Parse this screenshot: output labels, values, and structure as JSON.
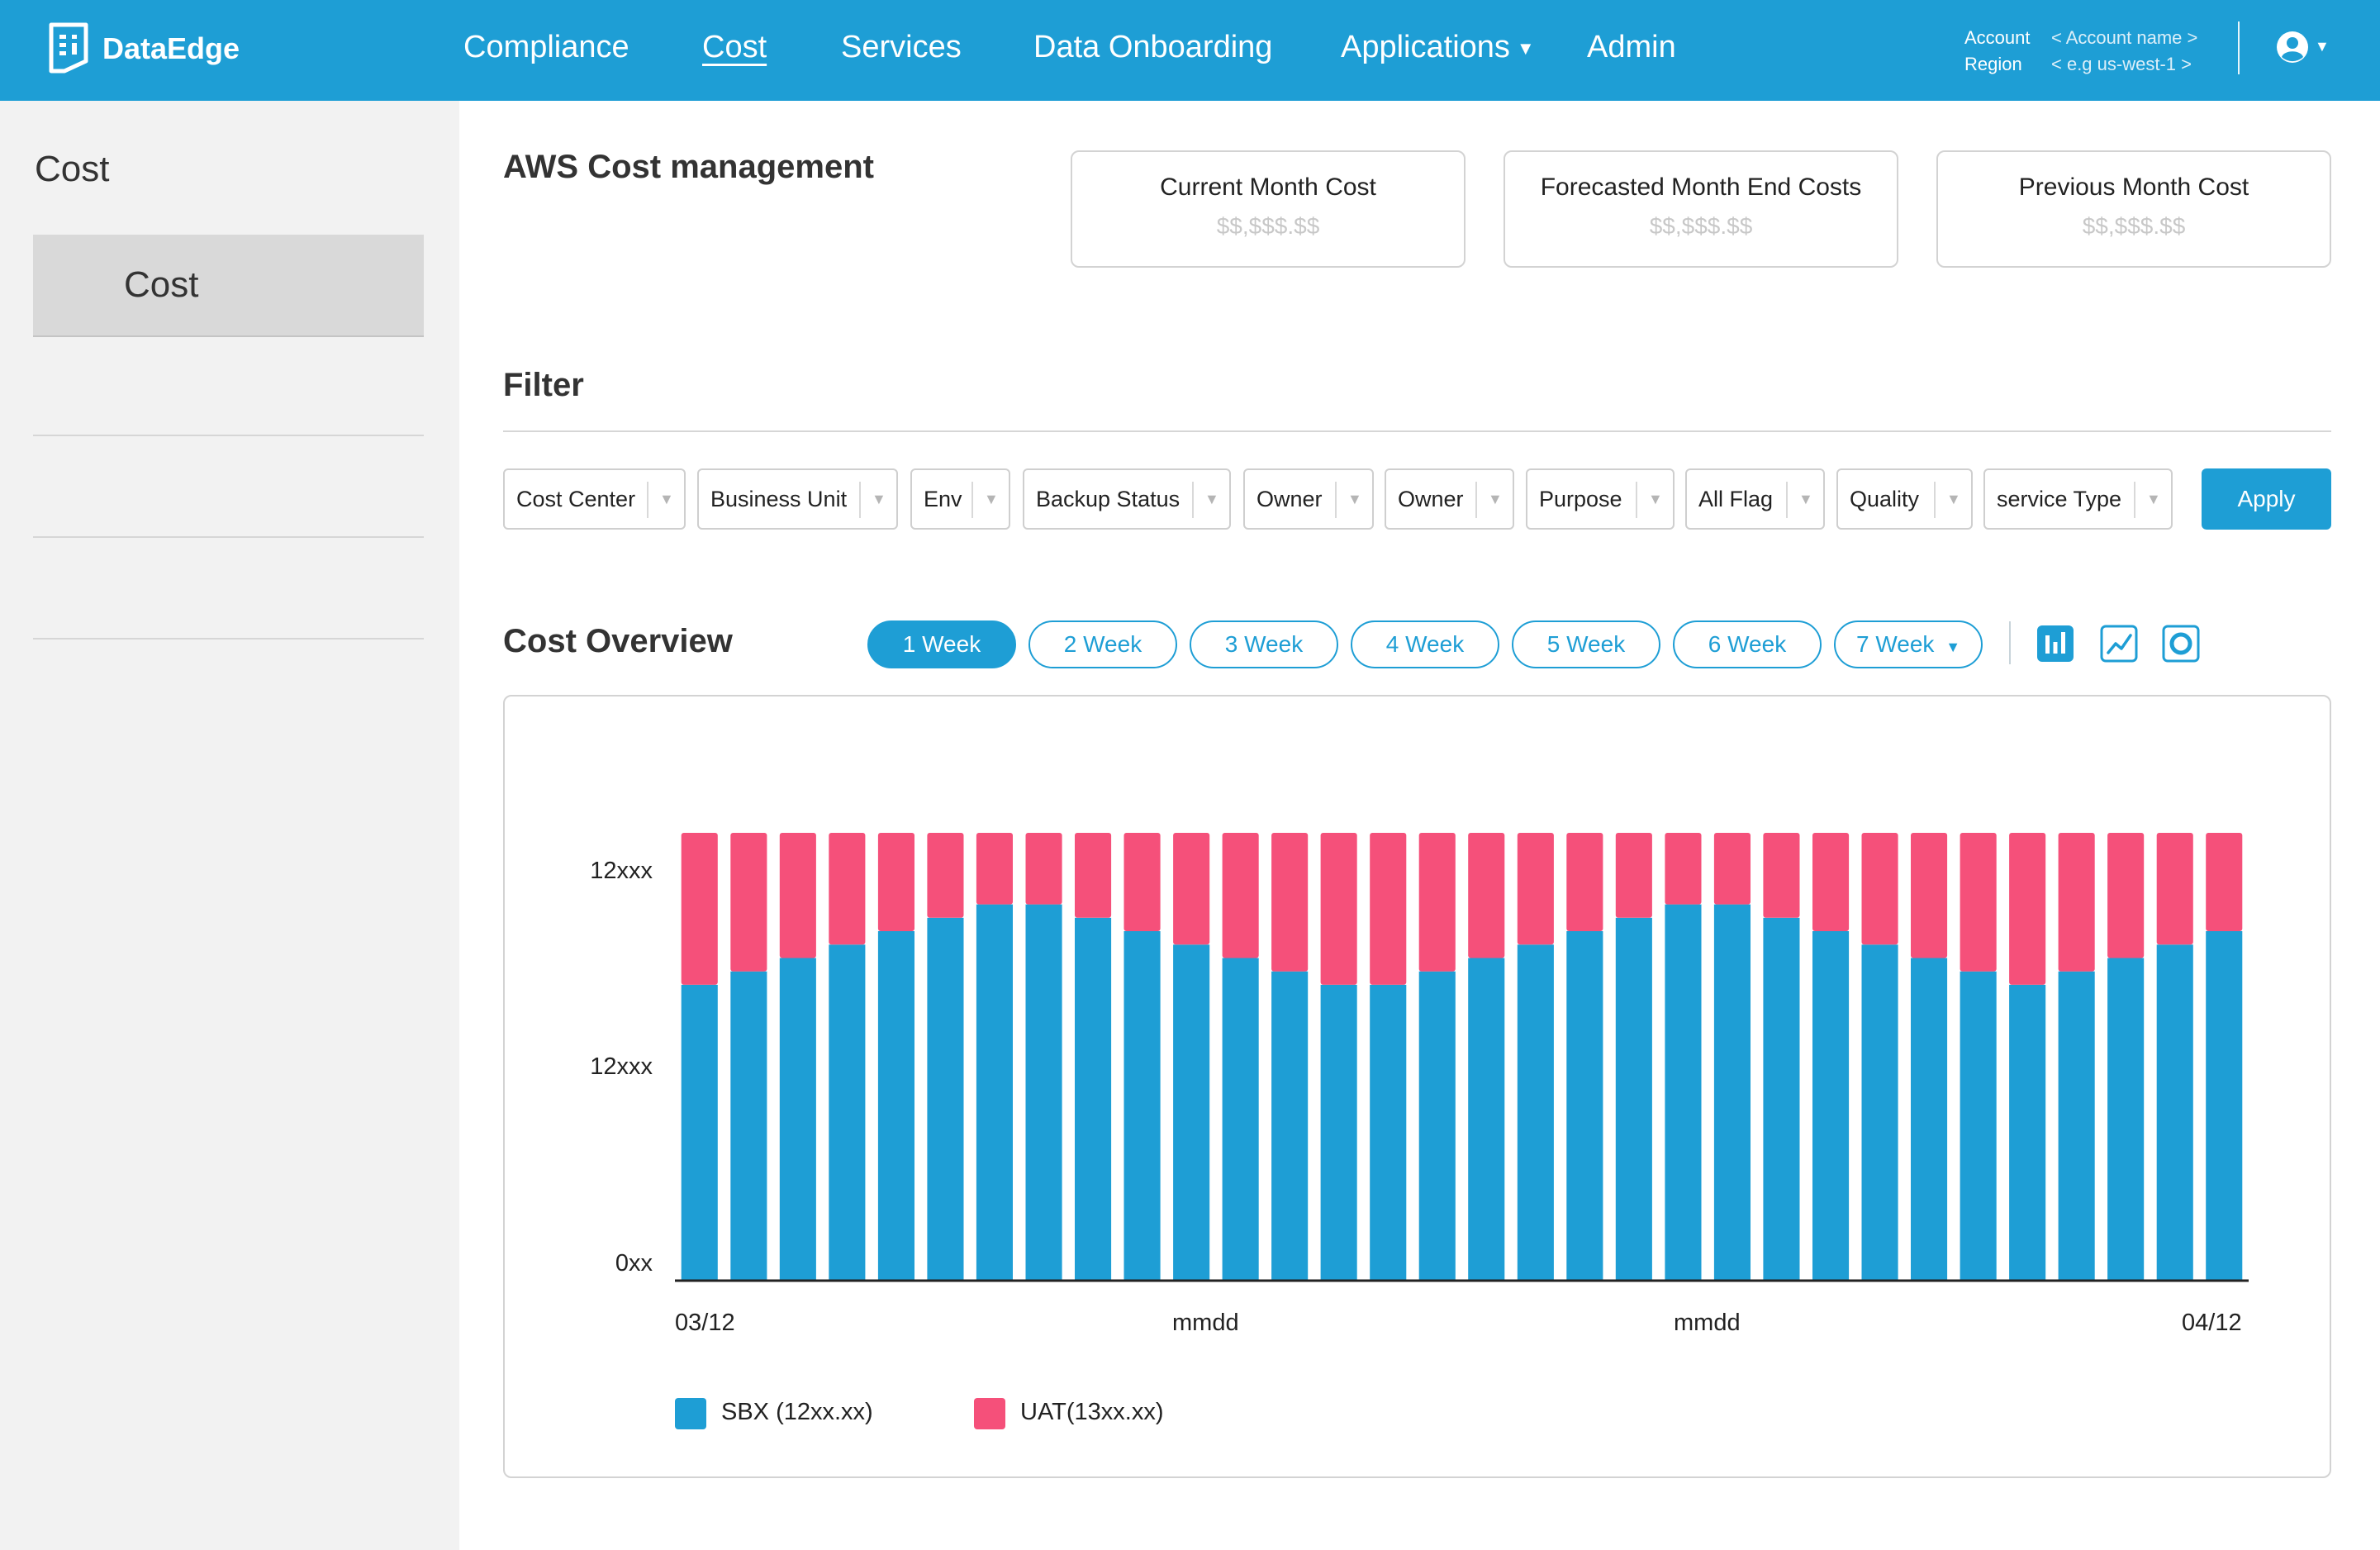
{
  "header": {
    "brand": "DataEdge",
    "nav": [
      "Compliance",
      "Cost",
      "Services",
      "Data Onboarding",
      "Applications",
      "Admin"
    ],
    "active_nav": "Cost",
    "account_label": "Account",
    "region_label": "Region",
    "account_value": "< Account name >",
    "region_value": "<  e.g us-west-1 >"
  },
  "sidebar": {
    "title": "Cost",
    "items": [
      "Cost"
    ]
  },
  "main": {
    "title": "AWS Cost management",
    "stats": [
      {
        "label": "Current Month Cost",
        "value": "$$,$$$.$$"
      },
      {
        "label": "Forecasted Month End Costs",
        "value": "$$,$$$.$$"
      },
      {
        "label": "Previous Month Cost",
        "value": "$$,$$$.$$"
      }
    ],
    "filter": {
      "title": "Filter",
      "dropdowns": [
        "Cost Center",
        "Business Unit",
        "Env",
        "Backup Status",
        "Owner",
        "Owner",
        "Purpose",
        "All Flag",
        "Quality",
        "service Type"
      ],
      "apply_label": "Apply"
    },
    "overview": {
      "title": "Cost Overview",
      "ranges": [
        "1 Week",
        "2 Week",
        "3 Week",
        "4 Week",
        "5 Week",
        "6 Week",
        "7 Week"
      ],
      "active_range": "1 Week",
      "view_icons": [
        "bar-chart-icon",
        "line-chart-icon",
        "donut-chart-icon"
      ]
    }
  },
  "chart_data": {
    "type": "bar",
    "stacked": true,
    "x_tick_labels": [
      "03/12",
      "mmdd",
      "mmdd",
      "04/12"
    ],
    "y_tick_labels": [
      "12xxx",
      "12xxx",
      "0xx"
    ],
    "series": [
      {
        "name": "SBX (12xx.xx)",
        "color": "#1e9ed5",
        "values": [
          0.66,
          0.69,
          0.72,
          0.75,
          0.78,
          0.81,
          0.84,
          0.84,
          0.81,
          0.78,
          0.75,
          0.72,
          0.69,
          0.66,
          0.66,
          0.69,
          0.72,
          0.75,
          0.78,
          0.81,
          0.84,
          0.84,
          0.81,
          0.78,
          0.75,
          0.72,
          0.69,
          0.66,
          0.69,
          0.72,
          0.75,
          0.78
        ]
      },
      {
        "name": "UAT(13xx.xx)",
        "color": "#f5507a",
        "values": [
          0.34,
          0.31,
          0.28,
          0.25,
          0.22,
          0.19,
          0.16,
          0.16,
          0.19,
          0.22,
          0.25,
          0.28,
          0.31,
          0.34,
          0.34,
          0.31,
          0.28,
          0.25,
          0.22,
          0.19,
          0.16,
          0.16,
          0.19,
          0.22,
          0.25,
          0.28,
          0.31,
          0.34,
          0.31,
          0.28,
          0.25,
          0.22
        ]
      }
    ],
    "ylim": [
      0,
      1
    ],
    "legend": "bottom-left"
  }
}
